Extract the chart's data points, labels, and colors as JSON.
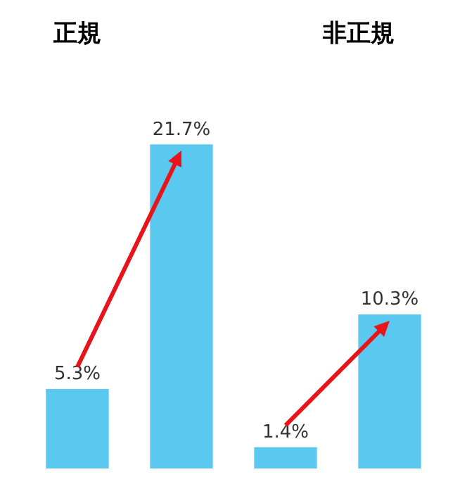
{
  "chart_data": {
    "type": "bar",
    "annotations": [
      "正規",
      "非正規"
    ],
    "categories": [
      null,
      null,
      null,
      null
    ],
    "values": [
      5.3,
      21.7,
      1.4,
      10.3
    ],
    "value_labels": [
      "5.3%",
      "21.7%",
      "1.4%",
      "10.3%"
    ],
    "color": "#5bc8f0",
    "legend": false,
    "tick_labels": false
  }
}
